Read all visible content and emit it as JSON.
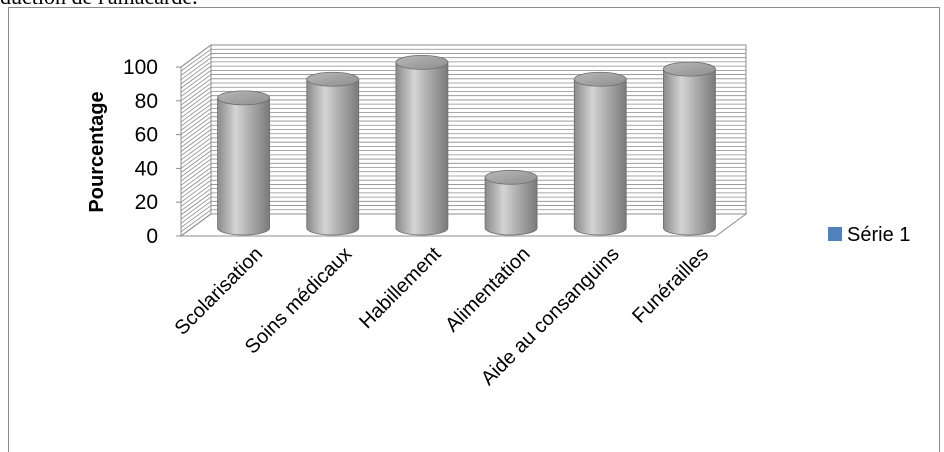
{
  "document": {
    "top_text": "duction de l'amacarde."
  },
  "chart_data": {
    "type": "bar",
    "style": "3d-cylinder",
    "categories": [
      "Scolarisation",
      "Soins médicaux",
      "Habillement",
      "Alimentation",
      "Aide au consanguins",
      "Funérailles"
    ],
    "series": [
      {
        "name": "Série 1",
        "values": [
          77,
          88,
          98,
          30,
          88,
          94
        ],
        "color": "#a6a6a6"
      }
    ],
    "title": "",
    "xlabel": "",
    "ylabel": "Pourcentage",
    "ylim": [
      0,
      100
    ],
    "yticks": [
      0,
      20,
      40,
      60,
      80,
      100
    ],
    "grid": true,
    "legend": {
      "position": "right",
      "marker_color": "#4f81bd"
    }
  }
}
